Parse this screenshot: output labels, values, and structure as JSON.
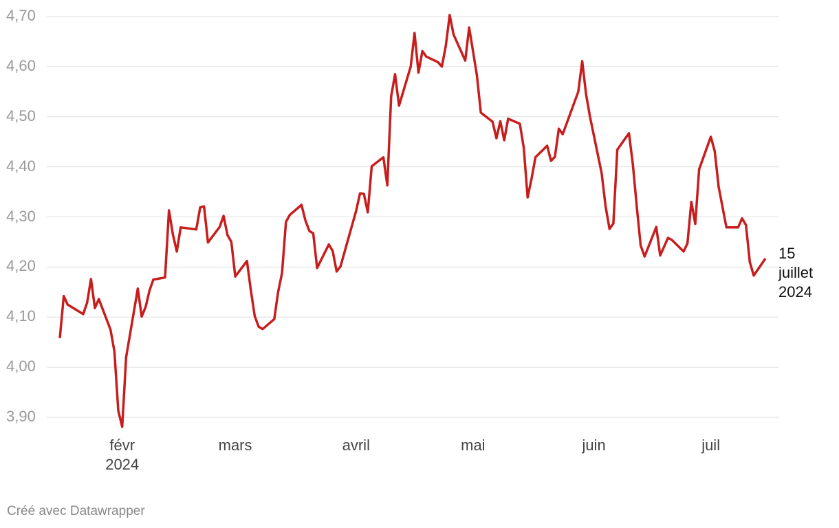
{
  "chart_data": {
    "type": "line",
    "x": [
      "2024-01-16",
      "2024-01-17",
      "2024-01-18",
      "2024-01-22",
      "2024-01-23",
      "2024-01-24",
      "2024-01-25",
      "2024-01-26",
      "2024-01-29",
      "2024-01-30",
      "2024-01-31",
      "2024-02-01",
      "2024-02-02",
      "2024-02-05",
      "2024-02-06",
      "2024-02-07",
      "2024-02-08",
      "2024-02-09",
      "2024-02-12",
      "2024-02-13",
      "2024-02-14",
      "2024-02-15",
      "2024-02-16",
      "2024-02-20",
      "2024-02-21",
      "2024-02-22",
      "2024-02-23",
      "2024-02-26",
      "2024-02-27",
      "2024-02-28",
      "2024-02-29",
      "2024-03-01",
      "2024-03-04",
      "2024-03-05",
      "2024-03-06",
      "2024-03-07",
      "2024-03-08",
      "2024-03-11",
      "2024-03-12",
      "2024-03-13",
      "2024-03-14",
      "2024-03-15",
      "2024-03-18",
      "2024-03-19",
      "2024-03-20",
      "2024-03-21",
      "2024-03-22",
      "2024-03-25",
      "2024-03-26",
      "2024-03-27",
      "2024-03-28",
      "2024-04-01",
      "2024-04-02",
      "2024-04-03",
      "2024-04-04",
      "2024-04-05",
      "2024-04-08",
      "2024-04-09",
      "2024-04-10",
      "2024-04-11",
      "2024-04-12",
      "2024-04-15",
      "2024-04-16",
      "2024-04-17",
      "2024-04-18",
      "2024-04-19",
      "2024-04-22",
      "2024-04-23",
      "2024-04-24",
      "2024-04-25",
      "2024-04-26",
      "2024-04-29",
      "2024-04-30",
      "2024-05-01",
      "2024-05-02",
      "2024-05-03",
      "2024-05-06",
      "2024-05-07",
      "2024-05-08",
      "2024-05-09",
      "2024-05-10",
      "2024-05-13",
      "2024-05-14",
      "2024-05-15",
      "2024-05-16",
      "2024-05-17",
      "2024-05-20",
      "2024-05-21",
      "2024-05-22",
      "2024-05-23",
      "2024-05-24",
      "2024-05-28",
      "2024-05-29",
      "2024-05-30",
      "2024-05-31",
      "2024-06-03",
      "2024-06-04",
      "2024-06-05",
      "2024-06-06",
      "2024-06-07",
      "2024-06-10",
      "2024-06-11",
      "2024-06-12",
      "2024-06-13",
      "2024-06-14",
      "2024-06-17",
      "2024-06-18",
      "2024-06-20",
      "2024-06-21",
      "2024-06-24",
      "2024-06-25",
      "2024-06-26",
      "2024-06-27",
      "2024-06-28",
      "2024-07-01",
      "2024-07-02",
      "2024-07-03",
      "2024-07-05",
      "2024-07-08",
      "2024-07-09",
      "2024-07-10",
      "2024-07-11",
      "2024-07-12",
      "2024-07-15"
    ],
    "values": [
      4.058,
      4.142,
      4.125,
      4.106,
      4.129,
      4.176,
      4.118,
      4.136,
      4.075,
      4.031,
      3.913,
      3.881,
      4.02,
      4.157,
      4.101,
      4.12,
      4.153,
      4.175,
      4.179,
      4.313,
      4.265,
      4.231,
      4.279,
      4.275,
      4.319,
      4.321,
      4.249,
      4.28,
      4.302,
      4.264,
      4.25,
      4.181,
      4.212,
      4.153,
      4.102,
      4.081,
      4.076,
      4.096,
      4.15,
      4.188,
      4.29,
      4.304,
      4.324,
      4.293,
      4.272,
      4.267,
      4.198,
      4.245,
      4.232,
      4.191,
      4.201,
      4.312,
      4.347,
      4.346,
      4.309,
      4.401,
      4.419,
      4.363,
      4.541,
      4.585,
      4.522,
      4.6,
      4.667,
      4.588,
      4.631,
      4.62,
      4.609,
      4.6,
      4.641,
      4.703,
      4.664,
      4.612,
      4.678,
      4.63,
      4.582,
      4.508,
      4.49,
      4.457,
      4.491,
      4.453,
      4.496,
      4.486,
      4.438,
      4.339,
      4.376,
      4.419,
      4.442,
      4.412,
      4.42,
      4.476,
      4.465,
      4.55,
      4.611,
      4.545,
      4.5,
      4.387,
      4.321,
      4.276,
      4.287,
      4.434,
      4.467,
      4.404,
      4.321,
      4.243,
      4.221,
      4.28,
      4.223,
      4.258,
      4.254,
      4.231,
      4.247,
      4.33,
      4.286,
      4.395,
      4.46,
      4.431,
      4.36,
      4.279,
      4.279,
      4.297,
      4.284,
      4.21,
      4.183,
      4.217
    ],
    "color": "#c71e1d",
    "end_label": "15 juillet 2024",
    "ylim": [
      3.9,
      4.7
    ],
    "yticks": [
      {
        "value": 3.9,
        "label": "3,90"
      },
      {
        "value": 4.0,
        "label": "4,00"
      },
      {
        "value": 4.1,
        "label": "4,10"
      },
      {
        "value": 4.2,
        "label": "4,20"
      },
      {
        "value": 4.3,
        "label": "4,30"
      },
      {
        "value": 4.4,
        "label": "4,40"
      },
      {
        "value": 4.5,
        "label": "4,50"
      },
      {
        "value": 4.6,
        "label": "4,60"
      },
      {
        "value": 4.7,
        "label": "4,70"
      }
    ],
    "xticks": [
      {
        "value": "2024-02-01",
        "label": "févr 2024"
      },
      {
        "value": "2024-03-01",
        "label": "mars"
      },
      {
        "value": "2024-04-01",
        "label": "avril"
      },
      {
        "value": "2024-05-01",
        "label": "mai"
      },
      {
        "value": "2024-06-01",
        "label": "juin"
      },
      {
        "value": "2024-07-01",
        "label": "juil"
      }
    ],
    "grid": true,
    "footer": "Créé avec Datawrapper"
  }
}
